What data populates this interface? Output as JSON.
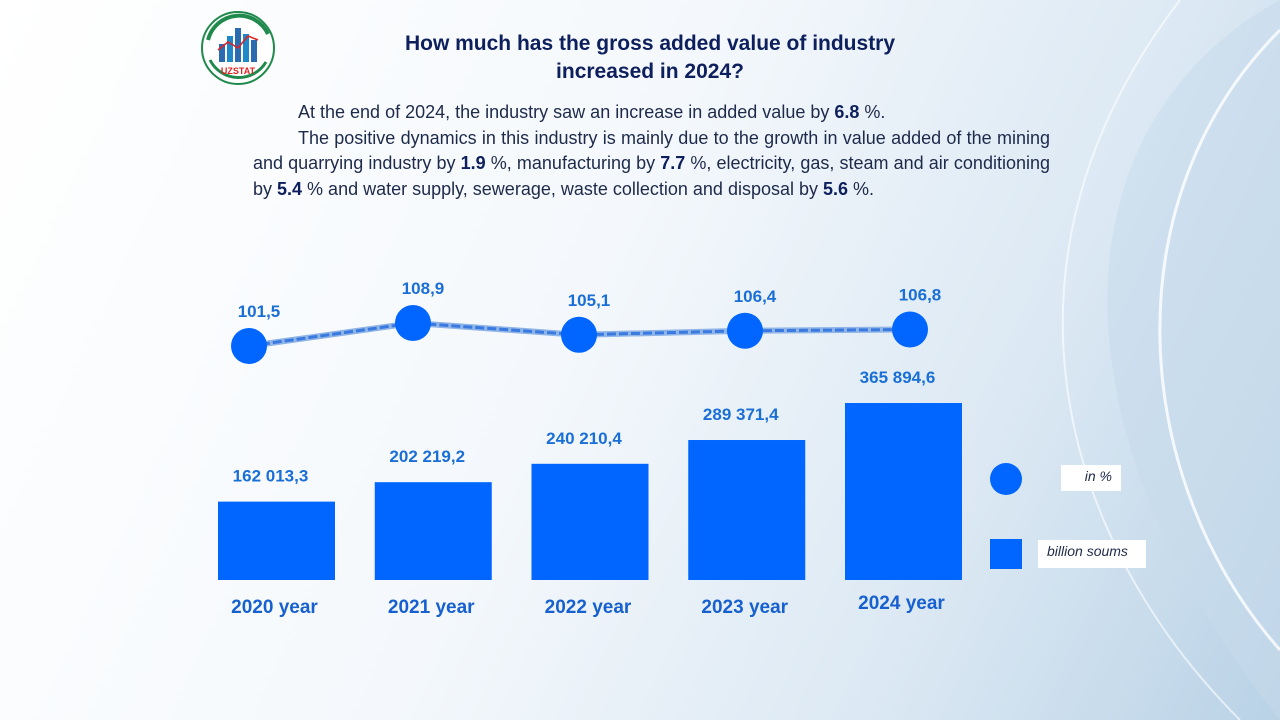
{
  "logo": {
    "text": "UZSTAT",
    "icon": "uzstat-logo-icon"
  },
  "title_line1": "How much has the gross added value of industry",
  "title_line2": "increased in 2024?",
  "paragraph1": {
    "pre": "At the end of 2024, the industry saw an increase in added value by ",
    "v1": "6.8",
    "post": " %."
  },
  "paragraph2": {
    "t1": "The positive dynamics in this industry is mainly due to the growth in value added of the mining and quarrying industry by ",
    "v1": "1.9",
    "t2": " %, manufacturing by ",
    "v2": "7.7",
    "t3": " %, electricity, gas, steam and air conditioning by ",
    "v3": "5.4",
    "t4": " % and water supply, sewerage, waste collection and disposal by ",
    "v4": "5.6",
    "t5": " %."
  },
  "colors": {
    "bar": "#0066ff",
    "dot": "#0066ff",
    "label": "#1a6fd6",
    "category": "#1660d0",
    "title": "#0d1f5c"
  },
  "legend": {
    "percent_label": "in %",
    "value_label": "billion soums"
  },
  "chart_data": {
    "type": "bar",
    "categories": [
      "2020 year",
      "2021 year",
      "2022 year",
      "2023 year",
      "2024 year"
    ],
    "series": [
      {
        "name": "billion soums",
        "type": "bar",
        "values": [
          162013.3,
          202219.2,
          240210.4,
          289371.4,
          365894.6
        ],
        "labels": [
          "162 013,3",
          "202 219,2",
          "240 210,4",
          "289 371,4",
          "365 894,6"
        ]
      },
      {
        "name": "in %",
        "type": "line",
        "values": [
          101.5,
          108.9,
          105.1,
          106.4,
          106.8
        ],
        "labels": [
          "101,5",
          "108,9",
          "105,1",
          "106,4",
          "106,8"
        ]
      }
    ],
    "legend": "right"
  }
}
